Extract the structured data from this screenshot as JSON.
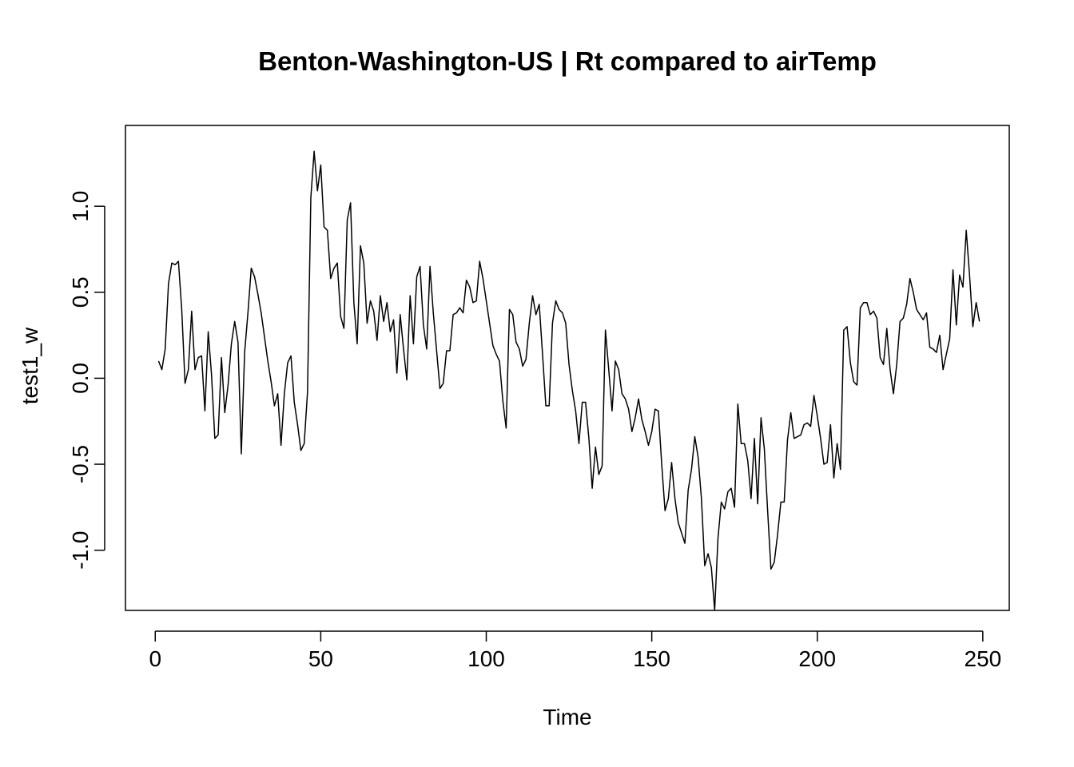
{
  "chart_data": {
    "type": "line",
    "title": "Benton-Washington-US | Rt compared to airTemp",
    "xlabel": "Time",
    "ylabel": "test1_w",
    "xlim": [
      -9,
      258
    ],
    "ylim": [
      -1.35,
      1.47
    ],
    "xticks": [
      0,
      50,
      100,
      150,
      200,
      250
    ],
    "xtick_labels": [
      "0",
      "50",
      "100",
      "150",
      "200",
      "250"
    ],
    "yticks": [
      -1.0,
      -0.5,
      0.0,
      0.5,
      1.0
    ],
    "ytick_labels": [
      "-1.0",
      "-0.5",
      "0.0",
      "0.5",
      "1.0"
    ],
    "grid": false,
    "line_color": "#000000",
    "x_start": 1,
    "x_step": 1,
    "series": [
      {
        "values": [
          0.1,
          0.05,
          0.17,
          0.55,
          0.67,
          0.66,
          0.68,
          0.4,
          -0.03,
          0.05,
          0.39,
          0.05,
          0.12,
          0.13,
          -0.19,
          0.27,
          0.02,
          -0.35,
          -0.33,
          0.12,
          -0.2,
          -0.04,
          0.2,
          0.33,
          0.21,
          -0.44,
          0.15,
          0.38,
          0.64,
          0.59,
          0.49,
          0.38,
          0.24,
          0.1,
          -0.02,
          -0.16,
          -0.09,
          -0.39,
          -0.09,
          0.09,
          0.13,
          -0.14,
          -0.27,
          -0.42,
          -0.38,
          -0.08,
          1.05,
          1.32,
          1.09,
          1.24,
          0.88,
          0.86,
          0.58,
          0.64,
          0.67,
          0.36,
          0.29,
          0.92,
          1.02,
          0.44,
          0.2,
          0.77,
          0.67,
          0.32,
          0.45,
          0.39,
          0.22,
          0.48,
          0.33,
          0.44,
          0.27,
          0.34,
          0.03,
          0.37,
          0.17,
          -0.01,
          0.48,
          0.2,
          0.59,
          0.65,
          0.31,
          0.17,
          0.65,
          0.38,
          0.16,
          -0.06,
          -0.03,
          0.16,
          0.16,
          0.37,
          0.38,
          0.41,
          0.38,
          0.57,
          0.53,
          0.44,
          0.45,
          0.68,
          0.58,
          0.45,
          0.32,
          0.19,
          0.14,
          0.1,
          -0.13,
          -0.29,
          0.4,
          0.37,
          0.21,
          0.17,
          0.07,
          0.11,
          0.32,
          0.48,
          0.37,
          0.43,
          0.14,
          -0.16,
          -0.16,
          0.32,
          0.45,
          0.4,
          0.38,
          0.32,
          0.08,
          -0.07,
          -0.19,
          -0.38,
          -0.14,
          -0.14,
          -0.35,
          -0.64,
          -0.4,
          -0.56,
          -0.51,
          0.28,
          0.05,
          -0.19,
          0.1,
          0.05,
          -0.09,
          -0.12,
          -0.18,
          -0.31,
          -0.23,
          -0.12,
          -0.24,
          -0.31,
          -0.39,
          -0.31,
          -0.18,
          -0.19,
          -0.5,
          -0.77,
          -0.7,
          -0.49,
          -0.7,
          -0.84,
          -0.9,
          -0.96,
          -0.65,
          -0.53,
          -0.34,
          -0.46,
          -0.7,
          -1.09,
          -1.02,
          -1.1,
          -1.35,
          -0.93,
          -0.72,
          -0.76,
          -0.66,
          -0.64,
          -0.75,
          -0.15,
          -0.38,
          -0.38,
          -0.48,
          -0.7,
          -0.35,
          -0.73,
          -0.23,
          -0.41,
          -0.77,
          -1.11,
          -1.07,
          -0.91,
          -0.72,
          -0.72,
          -0.36,
          -0.2,
          -0.35,
          -0.34,
          -0.33,
          -0.27,
          -0.26,
          -0.28,
          -0.1,
          -0.22,
          -0.35,
          -0.5,
          -0.49,
          -0.27,
          -0.58,
          -0.38,
          -0.53,
          0.28,
          0.3,
          0.09,
          -0.02,
          -0.04,
          0.41,
          0.44,
          0.44,
          0.37,
          0.39,
          0.35,
          0.12,
          0.08,
          0.29,
          0.05,
          -0.09,
          0.08,
          0.33,
          0.35,
          0.43,
          0.58,
          0.5,
          0.4,
          0.37,
          0.34,
          0.38,
          0.18,
          0.17,
          0.15,
          0.25,
          0.05,
          0.14,
          0.23,
          0.63,
          0.31,
          0.6,
          0.53,
          0.86,
          0.6,
          0.3,
          0.44,
          0.33
        ]
      }
    ]
  }
}
